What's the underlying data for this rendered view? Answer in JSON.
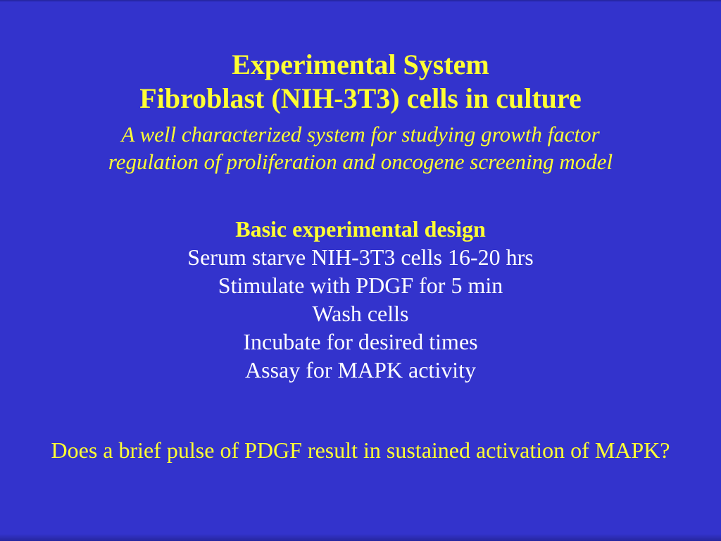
{
  "slide": {
    "title_line1": "Experimental System",
    "title_line2": "Fibroblast (NIH-3T3) cells in culture",
    "subtitle_line1": "A well characterized system for studying growth factor",
    "subtitle_line2": "regulation of proliferation and oncogene screening model",
    "section_heading": "Basic experimental design",
    "steps": [
      "Serum starve NIH-3T3 cells 16-20 hrs",
      "Stimulate with PDGF for 5 min",
      "Wash cells",
      "Incubate for desired times",
      "Assay for MAPK activity"
    ],
    "question": "Does a brief pulse of PDGF result in sustained activation of MAPK?",
    "colors": {
      "background": "#3333cc",
      "accent_yellow": "#ffff33",
      "body_white": "#ffffff"
    }
  }
}
